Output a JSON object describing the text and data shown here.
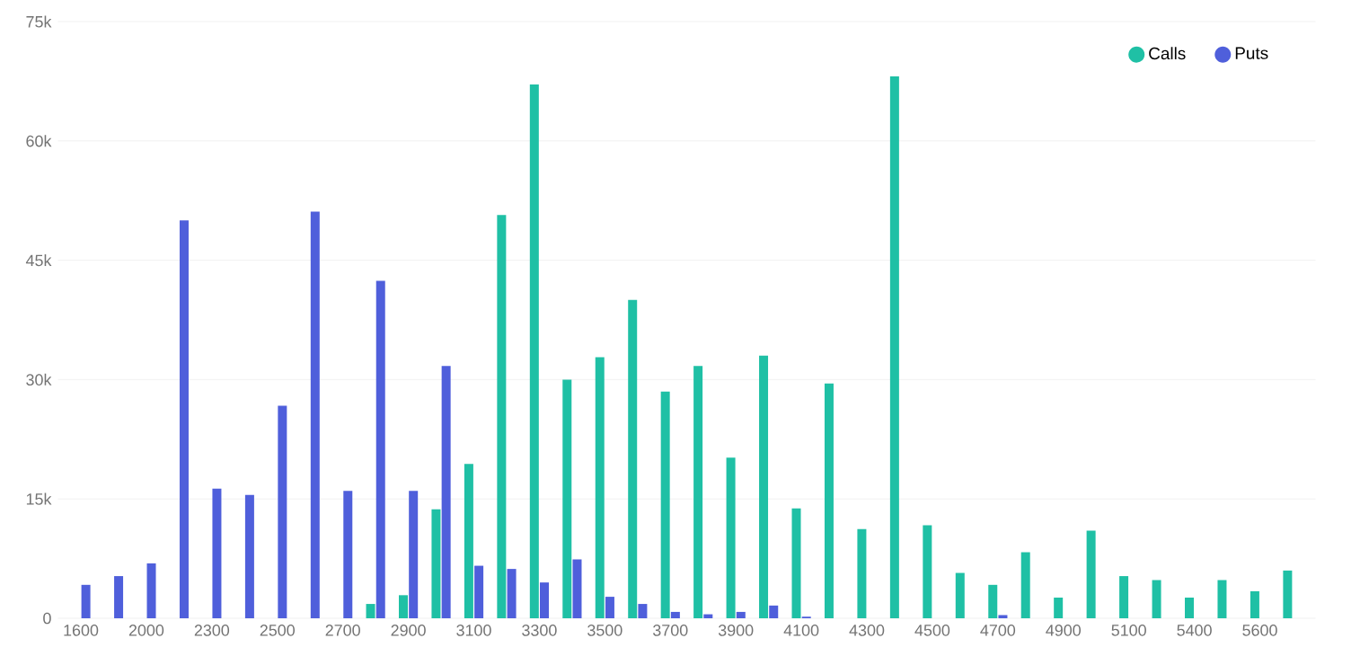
{
  "chart_data": {
    "type": "bar",
    "categories": [
      "1600",
      null,
      "2000",
      null,
      "2300",
      null,
      "2500",
      null,
      "2700",
      null,
      "2900",
      null,
      "3100",
      null,
      "3300",
      null,
      "3500",
      null,
      "3700",
      null,
      "3900",
      null,
      "4100",
      null,
      "4300",
      null,
      "4500",
      null,
      "4700",
      null,
      "4900",
      null,
      "5100",
      null,
      "5400",
      null,
      "5600",
      null
    ],
    "series": [
      {
        "name": "Calls",
        "color": "#1fc0a5",
        "values": [
          null,
          null,
          null,
          null,
          null,
          null,
          null,
          null,
          null,
          1800,
          2900,
          13700,
          19400,
          50700,
          67100,
          30000,
          32800,
          40000,
          28500,
          31700,
          20200,
          33000,
          13800,
          29500,
          11200,
          68100,
          11700,
          5700,
          4200,
          8300,
          2600,
          11000,
          5300,
          4800,
          2600,
          4800,
          3400,
          6000
        ]
      },
      {
        "name": "Puts",
        "color": "#4f5fdb",
        "values": [
          4200,
          5300,
          6900,
          50000,
          16300,
          15500,
          26700,
          51100,
          16000,
          42400,
          16000,
          31700,
          6600,
          6200,
          4500,
          7400,
          2700,
          1800,
          800,
          500,
          800,
          1600,
          200,
          null,
          null,
          null,
          null,
          null,
          400,
          null,
          null,
          null,
          null,
          null,
          null,
          null,
          null,
          null
        ]
      }
    ],
    "ylim": [
      0,
      75000
    ],
    "yticks": [
      {
        "value": 0,
        "label": "0"
      },
      {
        "value": 15000,
        "label": "15k"
      },
      {
        "value": 30000,
        "label": "30k"
      },
      {
        "value": 45000,
        "label": "45k"
      },
      {
        "value": 60000,
        "label": "60k"
      },
      {
        "value": 75000,
        "label": "75k"
      }
    ],
    "grid": "y",
    "legend": "top right"
  }
}
